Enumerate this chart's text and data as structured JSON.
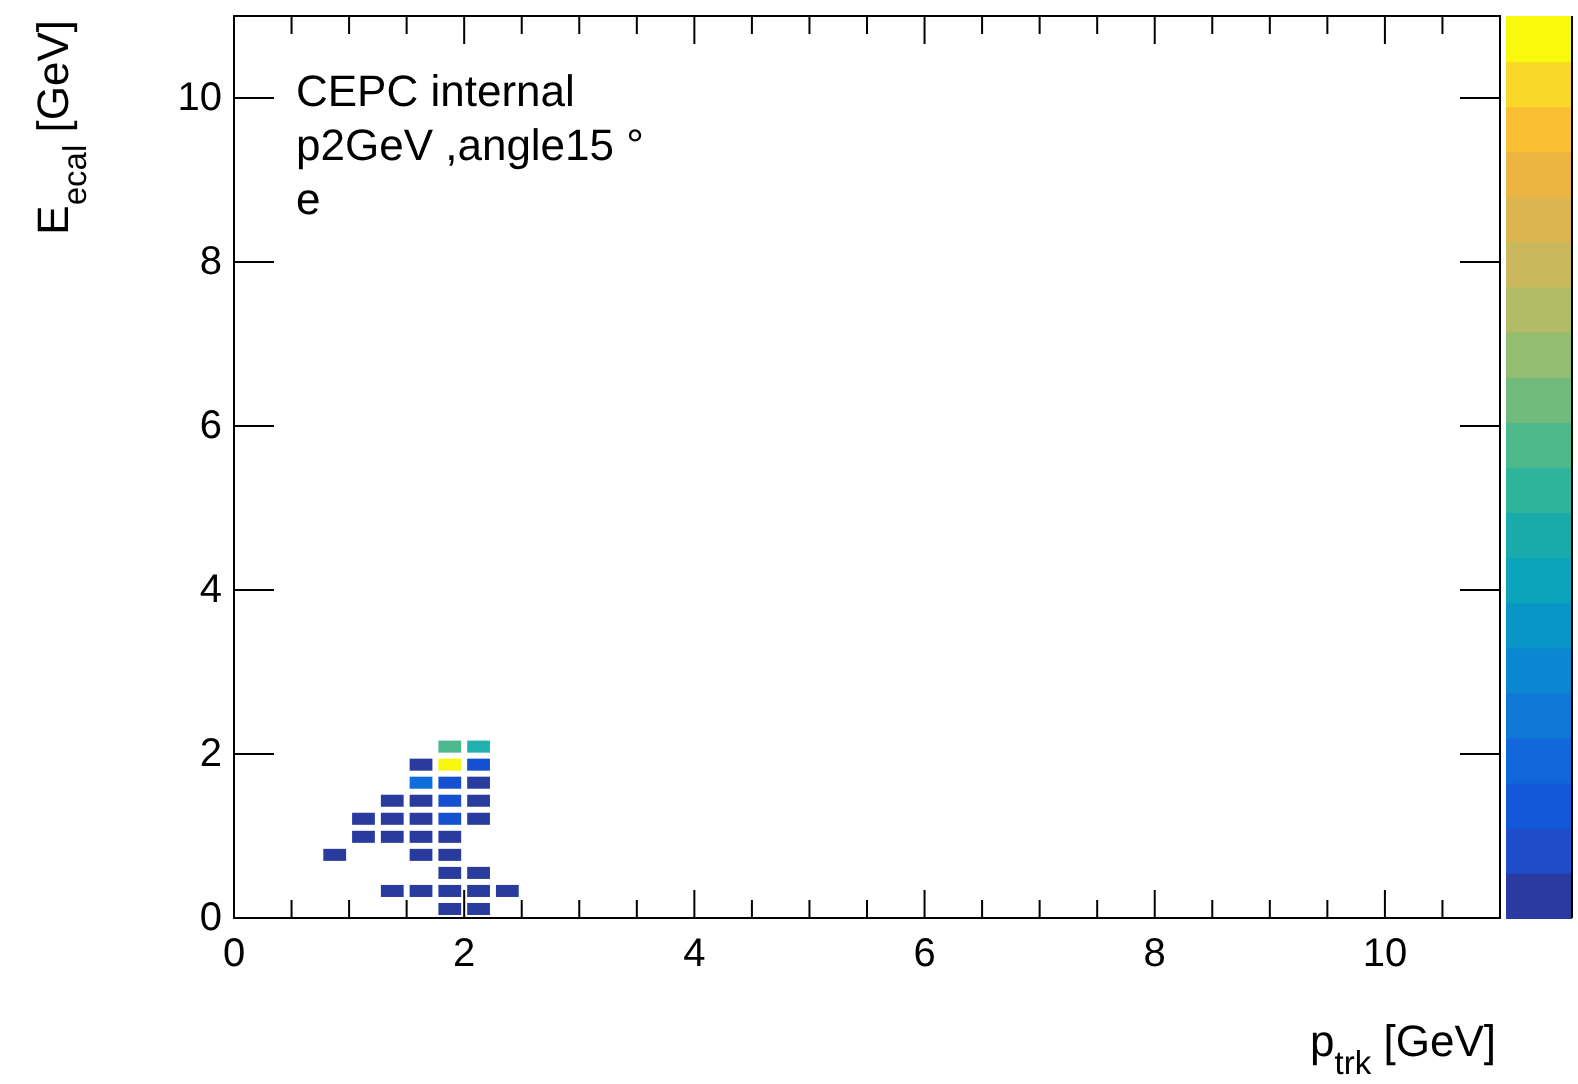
{
  "chart_data": {
    "type": "scatter",
    "marker": "square",
    "xlabel": "p$_{trk}$ [GeV]",
    "ylabel": "E$_{ecal}$ [GeV]",
    "annotations": [
      "CEPC internal",
      "p2GeV ,angle15 °",
      "e"
    ],
    "xlim": [
      0,
      11
    ],
    "ylim": [
      0,
      11
    ],
    "xticks": [
      0,
      {
        "value": 0.5,
        "label": null
      },
      {
        "value": 1,
        "label": null
      },
      {
        "value": 1.5,
        "label": null
      },
      2,
      {
        "value": 2.5,
        "label": null
      },
      {
        "value": 3,
        "label": null
      },
      {
        "value": 3.5,
        "label": null
      },
      4,
      {
        "value": 4.5,
        "label": null
      },
      {
        "value": 5,
        "label": null
      },
      {
        "value": 5.5,
        "label": null
      },
      6,
      {
        "value": 6.5,
        "label": null
      },
      {
        "value": 7,
        "label": null
      },
      {
        "value": 7.5,
        "label": null
      },
      8,
      {
        "value": 8.5,
        "label": null
      },
      {
        "value": 9,
        "label": null
      },
      {
        "value": 9.5,
        "label": null
      },
      10,
      {
        "value": 10.5,
        "label": null
      },
      {
        "value": 11,
        "label": null
      }
    ],
    "yticks": [
      0,
      2,
      4,
      6,
      8,
      10
    ],
    "x": [
      1.875,
      2.125,
      1.375,
      1.625,
      1.875,
      2.125,
      2.375,
      1.875,
      2.125,
      0.875,
      1.625,
      1.875,
      1.125,
      1.375,
      1.625,
      1.875,
      1.125,
      1.375,
      1.625,
      1.875,
      2.125,
      1.375,
      1.625,
      1.875,
      2.125,
      1.625,
      1.875,
      2.125,
      1.625,
      1.875,
      2.125,
      1.875,
      2.125
    ],
    "values": [
      0.11,
      0.11,
      0.33,
      0.33,
      0.33,
      0.33,
      0.33,
      0.55,
      0.55,
      0.77,
      0.77,
      0.77,
      0.99,
      0.99,
      0.99,
      0.99,
      1.21,
      1.21,
      1.21,
      1.21,
      1.21,
      1.43,
      1.43,
      1.43,
      1.43,
      1.65,
      1.65,
      1.65,
      1.87,
      1.87,
      1.87,
      2.09,
      2.09
    ],
    "colors": [
      "#2a3b9e",
      "#2a3b9e",
      "#2a3b9e",
      "#2a3b9e",
      "#2a3b9e",
      "#2a3b9e",
      "#2a3b9e",
      "#2a3b9e",
      "#2a3b9e",
      "#2a3b9e",
      "#2a3b9e",
      "#2a3b9e",
      "#2a3b9e",
      "#2a3b9e",
      "#2a3b9e",
      "#2a3b9e",
      "#2a3b9e",
      "#2a3b9e",
      "#2a3b9e",
      "#1450d0",
      "#2a3b9e",
      "#2a3b9e",
      "#2a3b9e",
      "#1450d0",
      "#2a3b9e",
      "#0e6fdc",
      "#1450d0",
      "#2a3b9e",
      "#2a3b9e",
      "#f8f80f",
      "#1450d0",
      "#4db98e",
      "#22b0b0"
    ]
  }
}
